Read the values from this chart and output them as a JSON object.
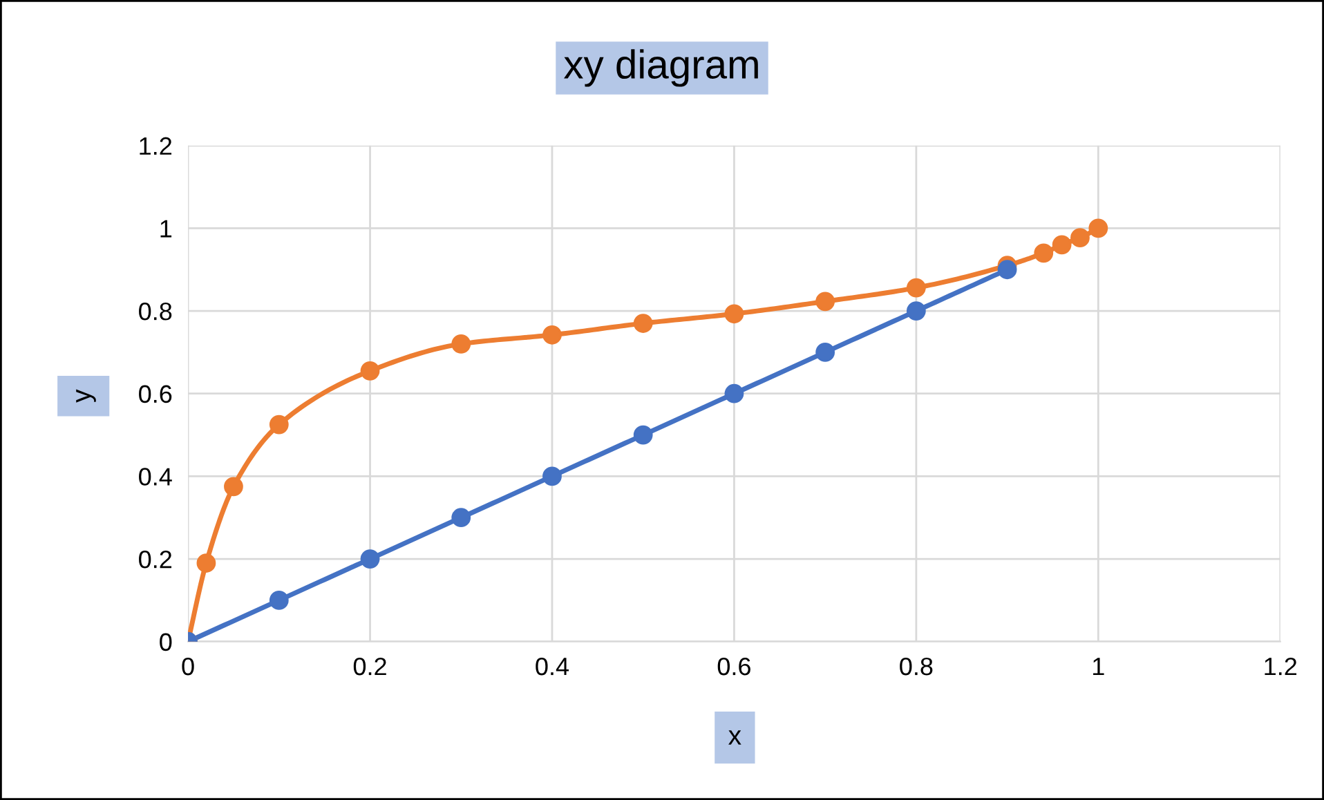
{
  "chart_data": {
    "type": "line",
    "title": "xy diagram",
    "xlabel": "x",
    "ylabel": "y",
    "xlim": [
      0,
      1.2
    ],
    "ylim": [
      0,
      1.2
    ],
    "xticks": [
      0,
      0.2,
      0.4,
      0.6,
      0.8,
      1,
      1.2
    ],
    "yticks": [
      0,
      0.2,
      0.4,
      0.6,
      0.8,
      1,
      1.2
    ],
    "grid": true,
    "legend": false,
    "marker": "circle",
    "line_style": "solid",
    "series": [
      {
        "color": "#4472c4",
        "x": [
          0,
          0.1,
          0.2,
          0.3,
          0.4,
          0.5,
          0.6,
          0.7,
          0.8,
          0.9
        ],
        "values": [
          0,
          0.1,
          0.2,
          0.3,
          0.4,
          0.5,
          0.6,
          0.7,
          0.8,
          0.9
        ]
      },
      {
        "color": "#ed7d31",
        "x": [
          0,
          0.02,
          0.05,
          0.1,
          0.2,
          0.3,
          0.4,
          0.5,
          0.6,
          0.7,
          0.8,
          0.9,
          0.94,
          0.96,
          0.98,
          1
        ],
        "values": [
          0,
          0.19,
          0.375,
          0.525,
          0.655,
          0.72,
          0.742,
          0.77,
          0.793,
          0.823,
          0.856,
          0.91,
          0.94,
          0.96,
          0.977,
          1
        ]
      }
    ]
  }
}
